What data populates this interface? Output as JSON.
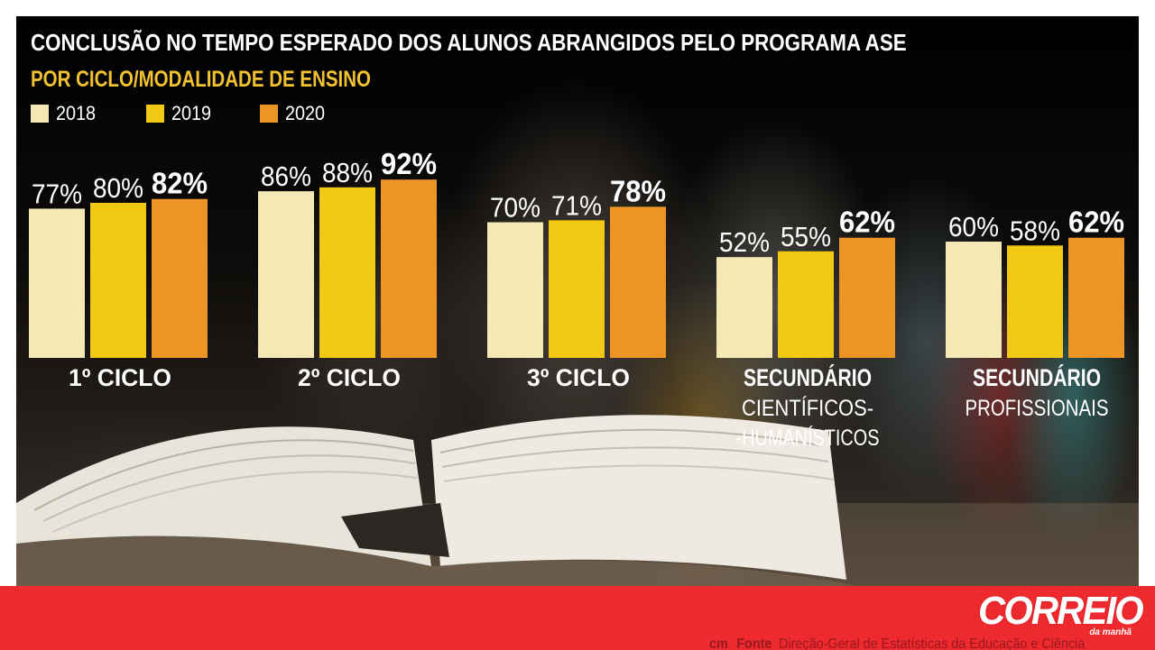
{
  "title": "CONCLUSÃO NO TEMPO ESPERADO DOS ALUNOS ABRANGIDOS PELO PROGRAMA ASE",
  "subtitle": "POR CICLO/MODALIDADE DE ENSINO",
  "colors": {
    "2018": "#f4e9b4",
    "2019": "#f1c912",
    "2020": "#ec9424",
    "subtitle": "#f2c230",
    "footer": "#ee2a2f"
  },
  "footer": {
    "source_prefix": "cm",
    "source_label": "Fonte",
    "source_text": "Direção-Geral de Estatísticas da Educação e Ciência",
    "brand": "CORREIO",
    "brand_sub": "da manhã"
  },
  "chart_data": {
    "type": "bar",
    "title": "CONCLUSÃO NO TEMPO ESPERADO DOS ALUNOS ABRANGIDOS PELO PROGRAMA ASE",
    "subtitle": "POR CICLO/MODALIDADE DE ENSINO",
    "ylim": [
      0,
      100
    ],
    "grid": false,
    "legend_position": "top-left",
    "categories": [
      {
        "line1": "1º CICLO",
        "line2": "",
        "line3": ""
      },
      {
        "line1": "2º CICLO",
        "line2": "",
        "line3": ""
      },
      {
        "line1": "3º CICLO",
        "line2": "",
        "line3": ""
      },
      {
        "line1": "SECUNDÁRIO",
        "line2": "CIENTÍFICOS-",
        "line3": "-HUMANÍSTICOS"
      },
      {
        "line1": "SECUNDÁRIO",
        "line2": "PROFISSIONAIS",
        "line3": ""
      }
    ],
    "series": [
      {
        "name": "2018",
        "values": [
          77,
          86,
          70,
          52,
          60
        ],
        "labels": [
          "77%",
          "86%",
          "70%",
          "52%",
          "60%"
        ]
      },
      {
        "name": "2019",
        "values": [
          80,
          88,
          71,
          55,
          58
        ],
        "labels": [
          "80%",
          "88%",
          "71%",
          "55%",
          "58%"
        ]
      },
      {
        "name": "2020",
        "values": [
          82,
          92,
          78,
          62,
          62
        ],
        "labels": [
          "82%",
          "92%",
          "78%",
          "62%",
          "62%"
        ]
      }
    ]
  }
}
